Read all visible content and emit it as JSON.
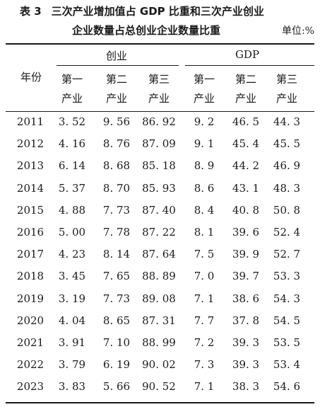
{
  "caption": {
    "table_no": "表 3",
    "title_line1": "三次产业增加值占 GDP 比重和三次产业创业",
    "title_line2": "企业数量占总创业企业数量比重",
    "unit": "单位:%"
  },
  "header": {
    "year_label": "年份",
    "group_startup": "创业",
    "group_gdp": "GDP",
    "sub": [
      {
        "l1": "第一",
        "l2": "产业"
      },
      {
        "l1": "第二",
        "l2": "产业"
      },
      {
        "l1": "第三",
        "l2": "产业"
      },
      {
        "l1": "第一",
        "l2": "产业"
      },
      {
        "l1": "第二",
        "l2": "产业"
      },
      {
        "l1": "第三",
        "l2": "产业"
      }
    ]
  },
  "rows": [
    [
      "2011",
      "3. 52",
      "9. 56",
      "86. 92",
      "9. 2",
      "46. 5",
      "44. 3"
    ],
    [
      "2012",
      "4. 16",
      "8. 76",
      "87. 09",
      "9. 1",
      "45. 4",
      "45. 5"
    ],
    [
      "2013",
      "6. 14",
      "8. 68",
      "85. 18",
      "8. 9",
      "44. 2",
      "46. 9"
    ],
    [
      "2014",
      "5. 37",
      "8. 70",
      "85. 93",
      "8. 6",
      "43. 1",
      "48. 3"
    ],
    [
      "2015",
      "4. 88",
      "7. 73",
      "87. 40",
      "8. 4",
      "40. 8",
      "50. 8"
    ],
    [
      "2016",
      "5. 00",
      "7. 78",
      "87. 22",
      "8. 1",
      "39. 6",
      "52. 4"
    ],
    [
      "2017",
      "4. 23",
      "8. 14",
      "87. 64",
      "7. 5",
      "39. 9",
      "52. 7"
    ],
    [
      "2018",
      "3. 45",
      "7. 65",
      "88. 89",
      "7. 0",
      "39. 7",
      "53. 3"
    ],
    [
      "2019",
      "3. 19",
      "7. 73",
      "89. 08",
      "7. 1",
      "38. 6",
      "54. 3"
    ],
    [
      "2020",
      "4. 04",
      "8. 65",
      "87. 31",
      "7. 7",
      "37. 8",
      "54. 5"
    ],
    [
      "2021",
      "3. 91",
      "7. 10",
      "88. 99",
      "7. 2",
      "39. 3",
      "53. 5"
    ],
    [
      "2022",
      "3. 79",
      "6. 19",
      "90. 02",
      "7. 3",
      "39. 3",
      "53. 4"
    ],
    [
      "2023",
      "3. 83",
      "5. 66",
      "90. 52",
      "7. 1",
      "38. 3",
      "54. 6"
    ]
  ]
}
